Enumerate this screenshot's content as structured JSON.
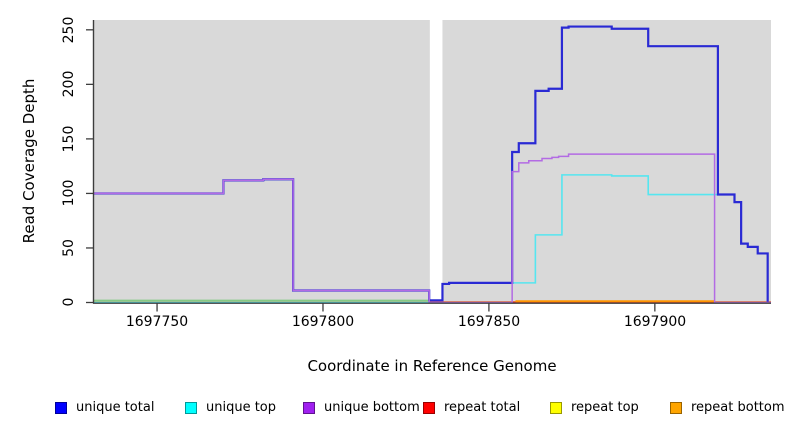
{
  "chart_data": {
    "type": "line",
    "style": "step-after",
    "title": "",
    "xlabel": "Coordinate in Reference Genome",
    "ylabel": "Read Coverage Depth",
    "xlim": [
      1697731,
      1697935
    ],
    "ylim": [
      0,
      250
    ],
    "y_plot_max": 259,
    "grid": false,
    "plot_bg": "#d9d9d9",
    "axis_color": "#3d3d3d",
    "x_ticks": [
      1697750,
      1697800,
      1697850,
      1697900
    ],
    "x_tick_labels": [
      "1697750",
      "1697800",
      "1697850",
      "1697900"
    ],
    "y_ticks": [
      0,
      50,
      100,
      150,
      200,
      250
    ],
    "y_tick_labels": [
      "0",
      "50",
      "100",
      "150",
      "200",
      "250"
    ],
    "gap_region": {
      "start": 1697832.2,
      "end": 1697836,
      "fill": "#ffffff"
    },
    "render_order": [
      "repeat top",
      "repeat total",
      "@baseline_overlaps",
      "unique top",
      "repeat bottom",
      "unique total",
      "unique bottom"
    ],
    "baseline_overlap_segments": [
      {
        "from": 1697731,
        "to": 1697832,
        "color": "#d2ab72",
        "width": 1.4,
        "dy": -0.3
      },
      {
        "from": 1697731,
        "to": 1697832,
        "color": "#85c985",
        "width": 1.7,
        "dy": -2.0
      }
    ],
    "series": [
      {
        "name": "unique total",
        "color": "#2a2ad4",
        "width": 2.2,
        "steps": [
          [
            1697731,
            100
          ],
          [
            1697770,
            112
          ],
          [
            1697782,
            113
          ],
          [
            1697791,
            11
          ],
          [
            1697832,
            2
          ],
          [
            1697836,
            17
          ],
          [
            1697838,
            18
          ],
          [
            1697857,
            138
          ],
          [
            1697859,
            146
          ],
          [
            1697864,
            194
          ],
          [
            1697868,
            196
          ],
          [
            1697872,
            252
          ],
          [
            1697874,
            253
          ],
          [
            1697887,
            251
          ],
          [
            1697898,
            235
          ],
          [
            1697919,
            99
          ],
          [
            1697924,
            92
          ],
          [
            1697926,
            54
          ],
          [
            1697928,
            51
          ],
          [
            1697931,
            45
          ],
          [
            1697934,
            0
          ]
        ]
      },
      {
        "name": "unique top",
        "color": "#55e6f0",
        "width": 1.6,
        "steps": [
          [
            1697731,
            0
          ],
          [
            1697832,
            2
          ],
          [
            1697836,
            17
          ],
          [
            1697838,
            18
          ],
          [
            1697864,
            62
          ],
          [
            1697872,
            117
          ],
          [
            1697887,
            116
          ],
          [
            1697898,
            99
          ],
          [
            1697919,
            99
          ],
          [
            1697924,
            92
          ],
          [
            1697926,
            54
          ],
          [
            1697928,
            51
          ],
          [
            1697931,
            45
          ],
          [
            1697934,
            0
          ]
        ]
      },
      {
        "name": "unique bottom",
        "color": "#b36be4",
        "width": 1.5,
        "end": 1697935,
        "steps": [
          [
            1697731,
            100
          ],
          [
            1697770,
            112
          ],
          [
            1697782,
            113
          ],
          [
            1697791,
            11
          ],
          [
            1697832,
            0
          ],
          [
            1697857,
            120
          ],
          [
            1697859,
            128
          ],
          [
            1697862,
            130
          ],
          [
            1697866,
            132
          ],
          [
            1697869,
            133
          ],
          [
            1697871,
            134
          ],
          [
            1697874,
            136
          ],
          [
            1697918,
            0
          ]
        ]
      },
      {
        "name": "repeat total",
        "color": "#e4273a",
        "width": 1.2,
        "end": 1697935,
        "dy": -0.5,
        "steps": [
          [
            1697731,
            0
          ]
        ]
      },
      {
        "name": "repeat top",
        "color": "#f0f028",
        "width": 1.2,
        "end": 1697935,
        "dy": -0.8,
        "steps": [
          [
            1697731,
            0
          ]
        ]
      },
      {
        "name": "repeat bottom",
        "color": "#ff9400",
        "width": 2.0,
        "end": 1697918,
        "dy": -1.3,
        "steps": [
          [
            1697858,
            0
          ]
        ]
      }
    ],
    "legend": {
      "position": "bottom",
      "items": [
        {
          "label": "unique total",
          "color": "#0000ff"
        },
        {
          "label": "unique top",
          "color": "#00ffff"
        },
        {
          "label": "unique bottom",
          "color": "#a020f0"
        },
        {
          "label": "repeat total",
          "color": "#ff0000"
        },
        {
          "label": "repeat top",
          "color": "#ffff00"
        },
        {
          "label": "repeat bottom",
          "color": "#ffa500"
        }
      ]
    }
  }
}
